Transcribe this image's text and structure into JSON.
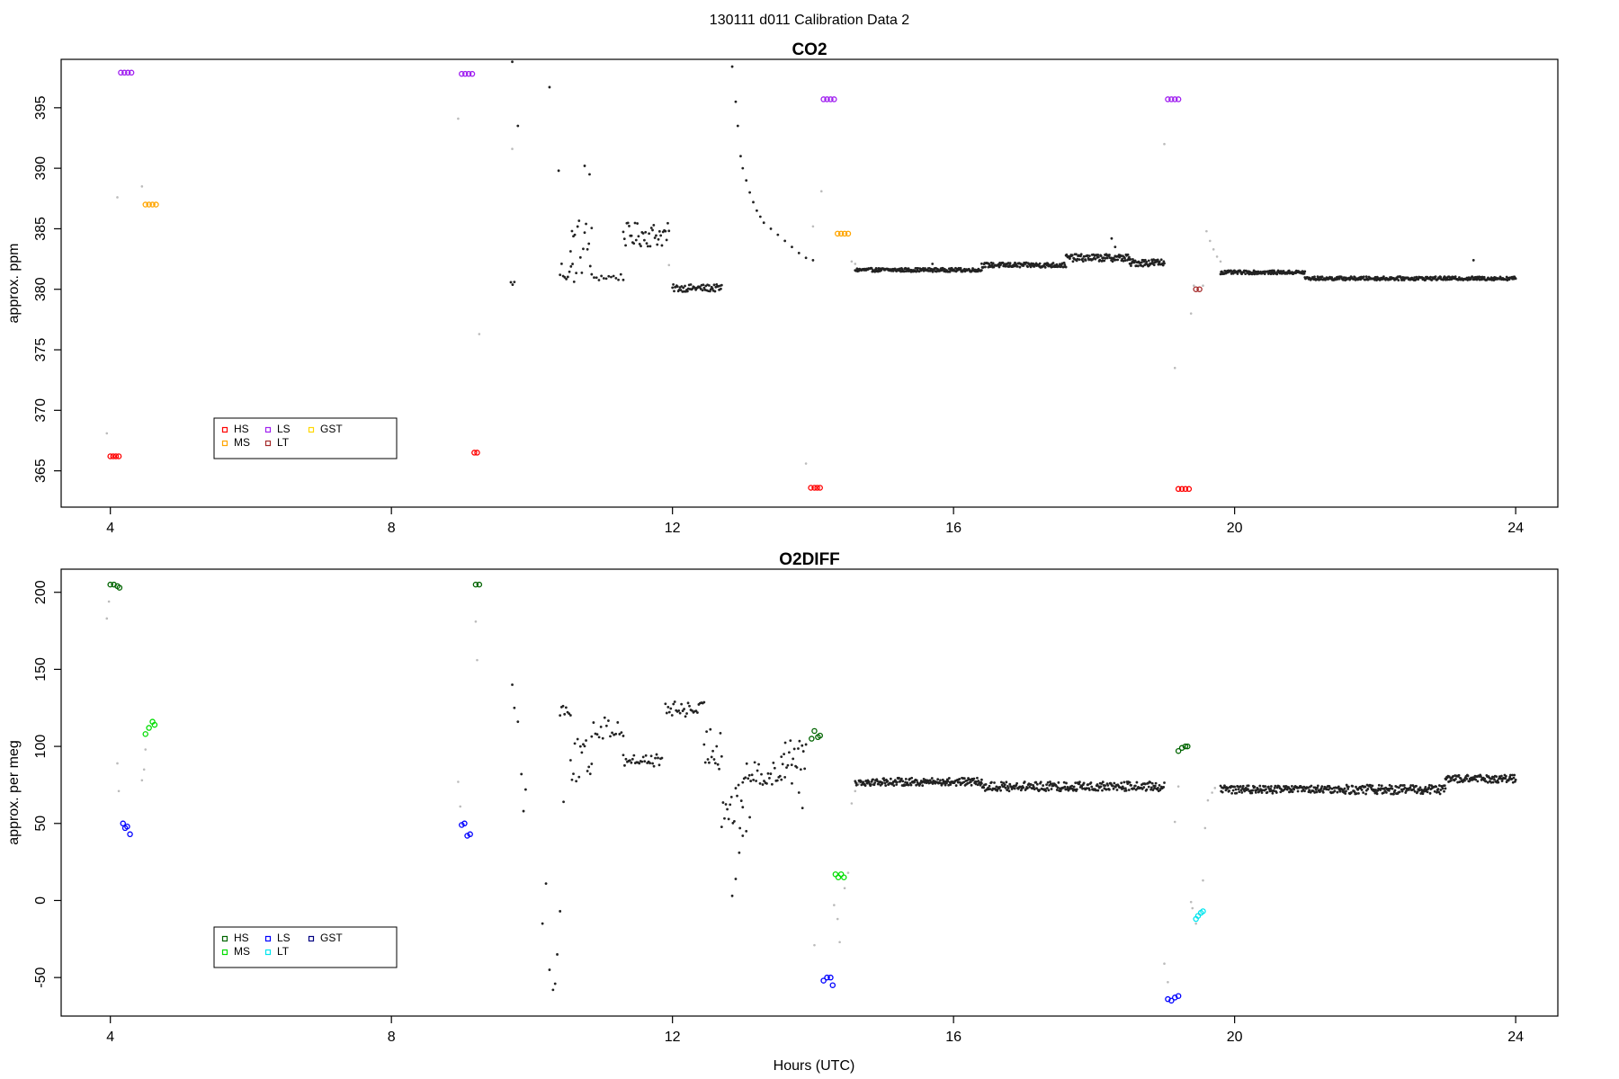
{
  "figure": {
    "title": "130111   d011   Calibration Data 2",
    "xlabel": "Hours (UTC)"
  },
  "chart_data": [
    {
      "type": "scatter",
      "title": "CO2",
      "xlabel": "",
      "ylabel": "approx. ppm",
      "xlim": [
        3.3,
        24.6
      ],
      "ylim": [
        362,
        399
      ],
      "x_ticks": [
        4,
        8,
        12,
        16,
        20,
        24
      ],
      "y_ticks": [
        365,
        370,
        375,
        380,
        385,
        390,
        395
      ],
      "legend": {
        "placement": "bottom-left",
        "entries": [
          {
            "label": "HS",
            "color": "#ff0000"
          },
          {
            "label": "MS",
            "color": "#ffa500"
          },
          {
            "label": "LS",
            "color": "#a020f0"
          },
          {
            "label": "LT",
            "color": "#a52a2a"
          },
          {
            "label": "GST",
            "color": "#ffd700"
          }
        ]
      },
      "calibration_series": [
        {
          "name": "HS",
          "color": "#ff0000",
          "points": [
            [
              4.0,
              366.2
            ],
            [
              4.04,
              366.2
            ],
            [
              4.08,
              366.2
            ],
            [
              4.12,
              366.2
            ],
            [
              9.18,
              366.5
            ],
            [
              9.22,
              366.5
            ],
            [
              13.97,
              363.6
            ],
            [
              14.02,
              363.6
            ],
            [
              14.06,
              363.6
            ],
            [
              14.1,
              363.6
            ],
            [
              19.2,
              363.5
            ],
            [
              19.25,
              363.5
            ],
            [
              19.3,
              363.5
            ],
            [
              19.35,
              363.5
            ]
          ]
        },
        {
          "name": "MS",
          "color": "#ffa500",
          "points": [
            [
              4.5,
              387.0
            ],
            [
              4.55,
              387.0
            ],
            [
              4.6,
              387.0
            ],
            [
              4.65,
              387.0
            ],
            [
              14.35,
              384.6
            ],
            [
              14.4,
              384.6
            ],
            [
              14.45,
              384.6
            ],
            [
              14.5,
              384.6
            ]
          ]
        },
        {
          "name": "LS",
          "color": "#a020f0",
          "points": [
            [
              4.15,
              397.9
            ],
            [
              4.2,
              397.9
            ],
            [
              4.25,
              397.9
            ],
            [
              4.3,
              397.9
            ],
            [
              9.0,
              397.8
            ],
            [
              9.05,
              397.8
            ],
            [
              9.1,
              397.8
            ],
            [
              9.15,
              397.8
            ],
            [
              14.15,
              395.7
            ],
            [
              14.2,
              395.7
            ],
            [
              14.25,
              395.7
            ],
            [
              14.3,
              395.7
            ],
            [
              19.05,
              395.7
            ],
            [
              19.1,
              395.7
            ],
            [
              19.15,
              395.7
            ],
            [
              19.2,
              395.7
            ]
          ]
        },
        {
          "name": "LT",
          "color": "#a52a2a",
          "points": [
            [
              19.45,
              380.0
            ],
            [
              19.5,
              380.0
            ]
          ]
        }
      ],
      "ambient_segments": [
        {
          "x_start": 9.7,
          "x_end": 9.75,
          "y": 380.5,
          "noise": 0.2,
          "n": 3
        },
        {
          "x_start": 10.4,
          "x_end": 10.6,
          "y": 381.5,
          "noise": 1.0,
          "n": 10
        },
        {
          "x_start": 10.55,
          "x_end": 10.85,
          "y": 383.5,
          "noise": 2.5,
          "n": 16
        },
        {
          "x_start": 10.85,
          "x_end": 11.3,
          "y": 381.0,
          "noise": 0.3,
          "n": 14
        },
        {
          "x_start": 11.3,
          "x_end": 11.95,
          "y": 384.5,
          "noise": 1.0,
          "n": 40
        },
        {
          "x_start": 12.0,
          "x_end": 12.7,
          "y": 380.1,
          "noise": 0.3,
          "n": 60
        },
        {
          "x_start": 14.6,
          "x_end": 16.4,
          "y": 381.6,
          "noise": 0.15,
          "n": 200
        },
        {
          "x_start": 16.4,
          "x_end": 17.6,
          "y": 382.0,
          "noise": 0.2,
          "n": 140
        },
        {
          "x_start": 17.6,
          "x_end": 18.5,
          "y": 382.6,
          "noise": 0.3,
          "n": 100
        },
        {
          "x_start": 18.5,
          "x_end": 19.0,
          "y": 382.2,
          "noise": 0.3,
          "n": 60
        },
        {
          "x_start": 19.8,
          "x_end": 21.0,
          "y": 381.4,
          "noise": 0.15,
          "n": 140
        },
        {
          "x_start": 21.0,
          "x_end": 24.0,
          "y": 380.9,
          "noise": 0.15,
          "n": 330
        }
      ],
      "ambient_points": [
        [
          9.72,
          398.8
        ],
        [
          9.8,
          393.5
        ],
        [
          10.25,
          396.7
        ],
        [
          10.38,
          389.8
        ],
        [
          10.75,
          390.2
        ],
        [
          10.82,
          389.5
        ],
        [
          12.85,
          398.4
        ],
        [
          12.9,
          395.5
        ],
        [
          12.93,
          393.5
        ],
        [
          12.97,
          391.0
        ],
        [
          13.0,
          390.0
        ],
        [
          13.05,
          389.0
        ],
        [
          13.1,
          388.0
        ],
        [
          13.15,
          387.2
        ],
        [
          13.2,
          386.5
        ],
        [
          13.25,
          386.0
        ],
        [
          13.3,
          385.5
        ],
        [
          13.4,
          385.0
        ],
        [
          13.5,
          384.5
        ],
        [
          13.6,
          384.0
        ],
        [
          13.7,
          383.5
        ],
        [
          13.8,
          383.0
        ],
        [
          13.9,
          382.6
        ],
        [
          14.0,
          382.4
        ],
        [
          15.7,
          382.1
        ],
        [
          18.25,
          384.2
        ],
        [
          18.3,
          383.5
        ],
        [
          23.4,
          382.4
        ],
        [
          23.45,
          380.8
        ]
      ],
      "transition_points": [
        [
          3.95,
          368.1
        ],
        [
          4.1,
          387.6
        ],
        [
          4.45,
          388.5
        ],
        [
          8.95,
          394.1
        ],
        [
          9.25,
          376.3
        ],
        [
          9.72,
          391.6
        ],
        [
          11.95,
          382.0
        ],
        [
          13.9,
          365.6
        ],
        [
          14.0,
          385.2
        ],
        [
          14.12,
          388.1
        ],
        [
          14.55,
          382.3
        ],
        [
          14.6,
          382.1
        ],
        [
          19.0,
          392.0
        ],
        [
          19.15,
          373.5
        ],
        [
          19.38,
          378.0
        ],
        [
          19.42,
          380.3
        ],
        [
          19.55,
          380.3
        ],
        [
          19.6,
          384.8
        ],
        [
          19.65,
          384.0
        ],
        [
          19.7,
          383.3
        ],
        [
          19.75,
          382.7
        ],
        [
          19.8,
          382.3
        ]
      ]
    },
    {
      "type": "scatter",
      "title": "O2DIFF",
      "xlabel": "Hours (UTC)",
      "ylabel": "approx. per meg",
      "xlim": [
        3.3,
        24.6
      ],
      "ylim": [
        -75,
        215
      ],
      "x_ticks": [
        4,
        8,
        12,
        16,
        20,
        24
      ],
      "y_ticks": [
        -50,
        0,
        50,
        100,
        150,
        200
      ],
      "legend": {
        "placement": "bottom-left",
        "entries": [
          {
            "label": "HS",
            "color": "#006400"
          },
          {
            "label": "MS",
            "color": "#00dd00"
          },
          {
            "label": "LS",
            "color": "#0000ff"
          },
          {
            "label": "LT",
            "color": "#00e5ee"
          },
          {
            "label": "GST",
            "color": "#000080"
          }
        ]
      },
      "calibration_series": [
        {
          "name": "HS",
          "color": "#006400",
          "points": [
            [
              4.0,
              205
            ],
            [
              4.05,
              205
            ],
            [
              4.1,
              204
            ],
            [
              4.13,
              203
            ],
            [
              9.2,
              205
            ],
            [
              9.25,
              205
            ],
            [
              13.98,
              105
            ],
            [
              14.02,
              110
            ],
            [
              14.07,
              106
            ],
            [
              14.1,
              107
            ],
            [
              19.2,
              97
            ],
            [
              19.25,
              99
            ],
            [
              19.3,
              100
            ],
            [
              19.33,
              100
            ]
          ]
        },
        {
          "name": "MS",
          "color": "#00dd00",
          "points": [
            [
              4.5,
              108
            ],
            [
              4.55,
              112
            ],
            [
              4.6,
              116
            ],
            [
              4.63,
              114
            ],
            [
              14.32,
              17
            ],
            [
              14.36,
              15
            ],
            [
              14.4,
              17
            ],
            [
              14.44,
              15
            ]
          ]
        },
        {
          "name": "LS",
          "color": "#0000ff",
          "points": [
            [
              4.18,
              50
            ],
            [
              4.21,
              47
            ],
            [
              4.24,
              48
            ],
            [
              4.28,
              43
            ],
            [
              9.0,
              49
            ],
            [
              9.04,
              50
            ],
            [
              9.08,
              42
            ],
            [
              9.12,
              43
            ],
            [
              14.15,
              -52
            ],
            [
              14.2,
              -50
            ],
            [
              14.25,
              -50
            ],
            [
              14.28,
              -55
            ],
            [
              19.05,
              -64
            ],
            [
              19.1,
              -65
            ],
            [
              19.15,
              -63
            ],
            [
              19.2,
              -62
            ]
          ]
        },
        {
          "name": "LT",
          "color": "#00e5ee",
          "points": [
            [
              19.45,
              -12
            ],
            [
              19.48,
              -10
            ],
            [
              19.52,
              -8
            ],
            [
              19.55,
              -7
            ]
          ]
        }
      ],
      "ambient_segments": [
        {
          "x_start": 10.4,
          "x_end": 10.55,
          "y": 124,
          "noise": 4,
          "n": 8
        },
        {
          "x_start": 10.55,
          "x_end": 10.85,
          "y": 90,
          "noise": 15,
          "n": 16
        },
        {
          "x_start": 10.85,
          "x_end": 11.3,
          "y": 112,
          "noise": 7,
          "n": 18
        },
        {
          "x_start": 11.3,
          "x_end": 11.85,
          "y": 91,
          "noise": 4,
          "n": 30
        },
        {
          "x_start": 11.9,
          "x_end": 12.45,
          "y": 124,
          "noise": 5,
          "n": 30
        },
        {
          "x_start": 12.45,
          "x_end": 12.7,
          "y": 100,
          "noise": 15,
          "n": 15
        },
        {
          "x_start": 12.7,
          "x_end": 13.0,
          "y": 60,
          "noise": 15,
          "n": 16
        },
        {
          "x_start": 13.0,
          "x_end": 13.55,
          "y": 82,
          "noise": 8,
          "n": 30
        },
        {
          "x_start": 13.55,
          "x_end": 13.9,
          "y": 95,
          "noise": 10,
          "n": 20
        },
        {
          "x_start": 14.6,
          "x_end": 16.4,
          "y": 77,
          "noise": 2.5,
          "n": 200
        },
        {
          "x_start": 16.4,
          "x_end": 19.0,
          "y": 74,
          "noise": 3,
          "n": 260
        },
        {
          "x_start": 19.8,
          "x_end": 21.5,
          "y": 72,
          "noise": 2.5,
          "n": 180
        },
        {
          "x_start": 21.5,
          "x_end": 23.0,
          "y": 72,
          "noise": 3,
          "n": 160
        },
        {
          "x_start": 23.0,
          "x_end": 24.0,
          "y": 79,
          "noise": 2.5,
          "n": 110
        }
      ],
      "ambient_points": [
        [
          9.72,
          140
        ],
        [
          9.75,
          125
        ],
        [
          9.8,
          116
        ],
        [
          9.85,
          82
        ],
        [
          9.88,
          58
        ],
        [
          9.91,
          72
        ],
        [
          10.15,
          -15
        ],
        [
          10.2,
          11
        ],
        [
          10.25,
          -45
        ],
        [
          10.3,
          -58
        ],
        [
          10.33,
          -54
        ],
        [
          10.36,
          -35
        ],
        [
          10.4,
          -7
        ],
        [
          10.45,
          64
        ],
        [
          12.85,
          3
        ],
        [
          12.9,
          14
        ],
        [
          12.95,
          31
        ],
        [
          13.0,
          42
        ],
        [
          13.05,
          45
        ],
        [
          13.1,
          54
        ],
        [
          13.6,
          80
        ],
        [
          13.7,
          76
        ],
        [
          13.8,
          70
        ],
        [
          13.85,
          60
        ]
      ],
      "transition_points": [
        [
          3.95,
          183
        ],
        [
          3.98,
          194
        ],
        [
          4.1,
          89
        ],
        [
          4.12,
          71
        ],
        [
          4.45,
          78
        ],
        [
          4.48,
          85
        ],
        [
          4.5,
          98
        ],
        [
          8.95,
          77
        ],
        [
          8.98,
          61
        ],
        [
          9.2,
          181
        ],
        [
          9.22,
          156
        ],
        [
          14.02,
          -29
        ],
        [
          14.3,
          -3
        ],
        [
          14.35,
          -12
        ],
        [
          14.38,
          -27
        ],
        [
          14.45,
          8
        ],
        [
          14.5,
          18
        ],
        [
          14.55,
          63
        ],
        [
          14.6,
          71
        ],
        [
          14.65,
          76
        ],
        [
          19.0,
          -41
        ],
        [
          19.05,
          -53
        ],
        [
          19.15,
          51
        ],
        [
          19.2,
          74
        ],
        [
          19.38,
          -1
        ],
        [
          19.4,
          -5
        ],
        [
          19.45,
          -15
        ],
        [
          19.5,
          -9
        ],
        [
          19.55,
          13
        ],
        [
          19.58,
          47
        ],
        [
          19.62,
          65
        ],
        [
          19.68,
          70
        ],
        [
          19.72,
          73
        ]
      ]
    }
  ]
}
